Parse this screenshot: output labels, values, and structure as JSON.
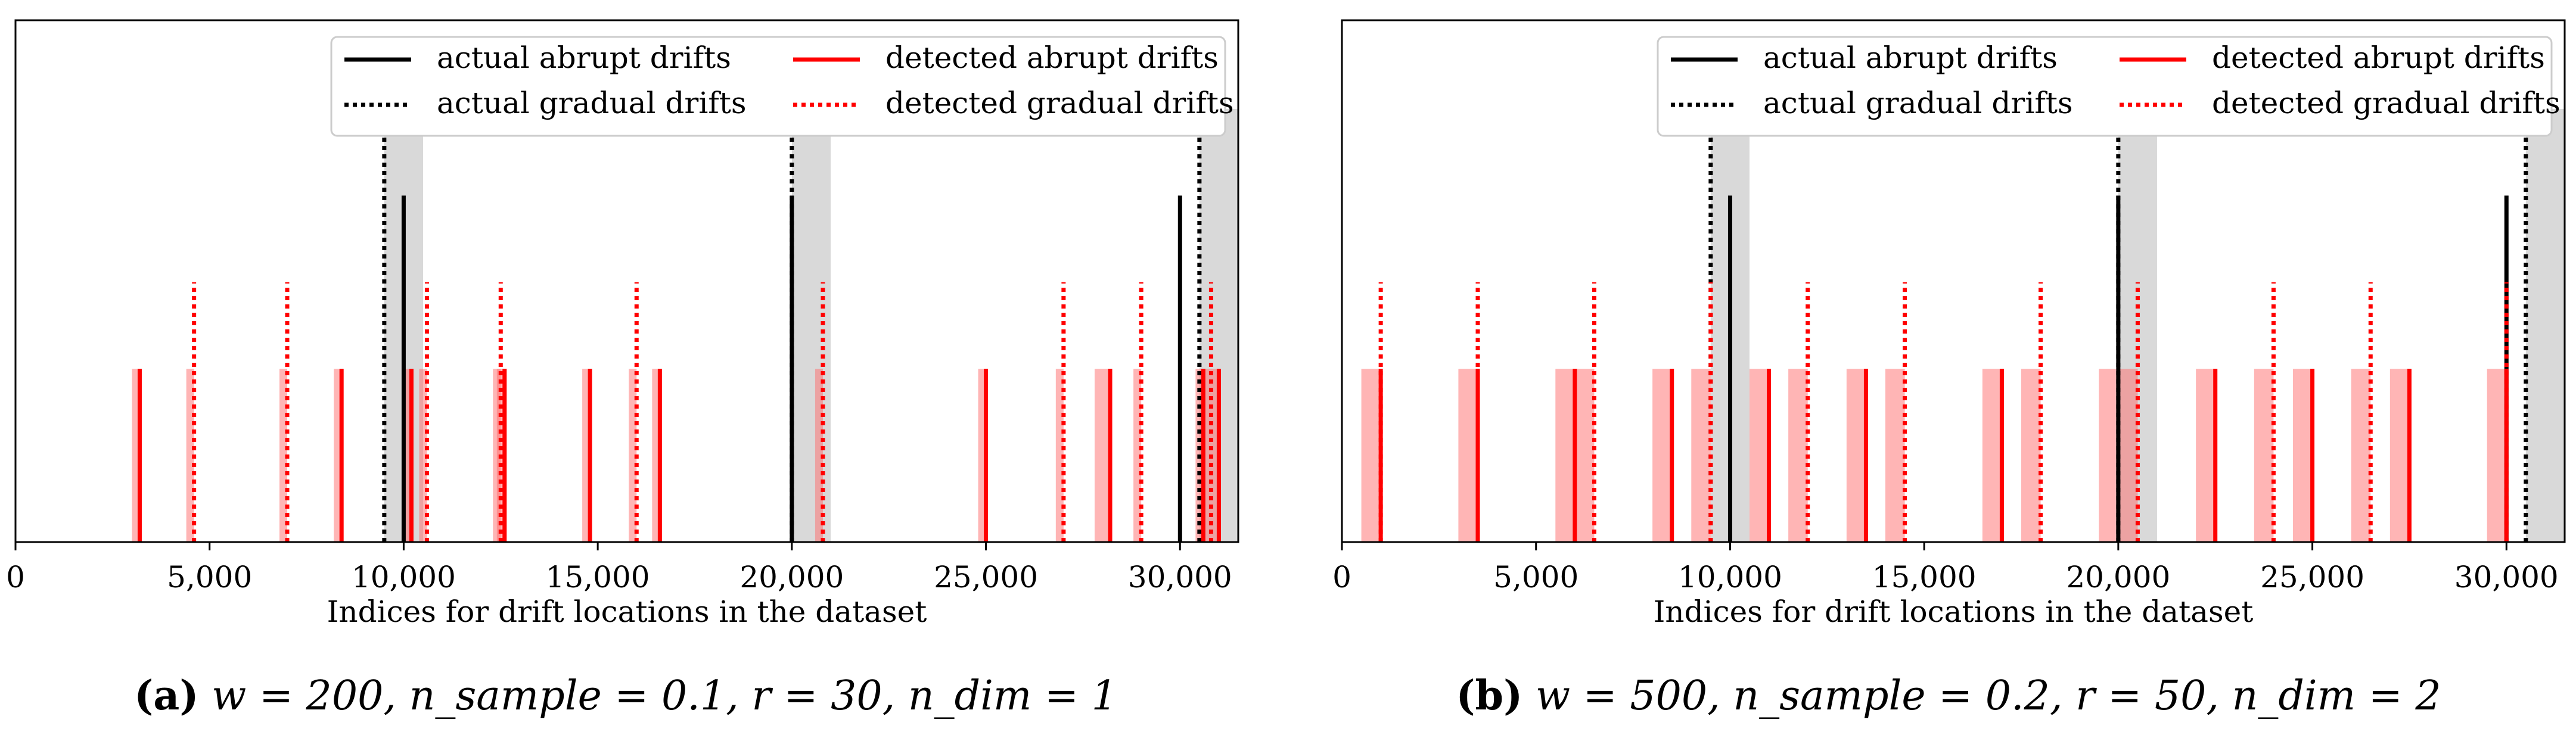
{
  "colors": {
    "actual": "#000000",
    "detected": "#ff0000",
    "span_actual": "#d9d9d9",
    "span_detected": "#ff6b6b"
  },
  "chart_data": [
    {
      "type": "event-lines",
      "xlabel": "Indices for drift locations in the dataset",
      "xlim": [
        0,
        31500
      ],
      "ylim": [
        0,
        1
      ],
      "xticks": [
        0,
        5000,
        10000,
        15000,
        20000,
        25000,
        30000
      ],
      "xtick_labels": [
        "0",
        "5,000",
        "10,000",
        "15,000",
        "20,000",
        "25,000",
        "30,000"
      ],
      "legend": {
        "placement": "top-right",
        "entries": [
          {
            "label": "actual abrupt drifts",
            "style": "solid",
            "color": "black"
          },
          {
            "label": "detected abrupt drifts",
            "style": "solid",
            "color": "red"
          },
          {
            "label": "actual gradual drifts",
            "style": "dotted",
            "color": "black"
          },
          {
            "label": "detected gradual drifts",
            "style": "dotted",
            "color": "red"
          }
        ]
      },
      "actual_abrupt": {
        "x": [
          10000,
          20000,
          30000
        ],
        "height": 0.8
      },
      "actual_gradual": {
        "x": [
          9500,
          20000,
          30500
        ],
        "height": 1.0
      },
      "actual_spans": [
        [
          9500,
          10500
        ],
        [
          20000,
          21000
        ],
        [
          30500,
          31500
        ]
      ],
      "detected_gradual": {
        "x": [
          4600,
          7000,
          10600,
          12500,
          16000,
          20800,
          27000,
          29000,
          30800
        ],
        "height": 0.6
      },
      "detected_abrupt": {
        "x": [
          3200,
          8400,
          10200,
          12600,
          14800,
          16600,
          25000,
          28200,
          30600,
          31000
        ],
        "height": 0.4
      },
      "detected_spans": [
        [
          3000,
          3200
        ],
        [
          4400,
          4600
        ],
        [
          6800,
          7000
        ],
        [
          8200,
          8400
        ],
        [
          10000,
          10200
        ],
        [
          10400,
          10600
        ],
        [
          12300,
          12500
        ],
        [
          12400,
          12600
        ],
        [
          14600,
          14800
        ],
        [
          15800,
          16000
        ],
        [
          16400,
          16600
        ],
        [
          20600,
          20800
        ],
        [
          24800,
          25000
        ],
        [
          26800,
          27000
        ],
        [
          27800,
          28000
        ],
        [
          28000,
          28200
        ],
        [
          28800,
          29000
        ],
        [
          30400,
          30600
        ],
        [
          30600,
          30800
        ],
        [
          30800,
          31000
        ]
      ],
      "caption": {
        "tag": "(a)",
        "params": "w = 200, n_sample = 0.1, r = 30, n_dim = 1"
      }
    },
    {
      "type": "event-lines",
      "xlabel": "Indices for drift locations in the dataset",
      "xlim": [
        0,
        31500
      ],
      "ylim": [
        0,
        1
      ],
      "xticks": [
        0,
        5000,
        10000,
        15000,
        20000,
        25000,
        30000
      ],
      "xtick_labels": [
        "0",
        "5,000",
        "10,000",
        "15,000",
        "20,000",
        "25,000",
        "30,000"
      ],
      "legend": {
        "placement": "top-right",
        "entries": [
          {
            "label": "actual abrupt drifts",
            "style": "solid",
            "color": "black"
          },
          {
            "label": "detected abrupt drifts",
            "style": "solid",
            "color": "red"
          },
          {
            "label": "actual gradual drifts",
            "style": "dotted",
            "color": "black"
          },
          {
            "label": "detected gradual drifts",
            "style": "dotted",
            "color": "red"
          }
        ]
      },
      "actual_abrupt": {
        "x": [
          10000,
          20000,
          30000
        ],
        "height": 0.8
      },
      "actual_gradual": {
        "x": [
          9500,
          20000,
          30500
        ],
        "height": 1.0
      },
      "actual_spans": [
        [
          9500,
          10500
        ],
        [
          20000,
          21000
        ],
        [
          30500,
          31500
        ]
      ],
      "detected_gradual": {
        "x": [
          1000,
          3500,
          6500,
          9500,
          12000,
          14500,
          18000,
          20500,
          24000,
          26500,
          30000
        ],
        "height": 0.6
      },
      "detected_abrupt": {
        "x": [
          1000,
          3500,
          6000,
          8500,
          11000,
          13500,
          17000,
          22500,
          25000,
          27500,
          30000
        ],
        "height": 0.4
      },
      "detected_spans": [
        [
          500,
          1000
        ],
        [
          3000,
          3500
        ],
        [
          5500,
          6000
        ],
        [
          6000,
          6500
        ],
        [
          8000,
          8500
        ],
        [
          9000,
          9500
        ],
        [
          10500,
          11000
        ],
        [
          11500,
          12000
        ],
        [
          13000,
          13500
        ],
        [
          14000,
          14500
        ],
        [
          16500,
          17000
        ],
        [
          17500,
          18000
        ],
        [
          19500,
          20000
        ],
        [
          20000,
          20500
        ],
        [
          22000,
          22500
        ],
        [
          23500,
          24000
        ],
        [
          24500,
          25000
        ],
        [
          26000,
          26500
        ],
        [
          27000,
          27500
        ],
        [
          29500,
          30000
        ]
      ],
      "caption": {
        "tag": "(b)",
        "params": "w = 500, n_sample = 0.2, r = 50, n_dim = 2"
      }
    }
  ]
}
